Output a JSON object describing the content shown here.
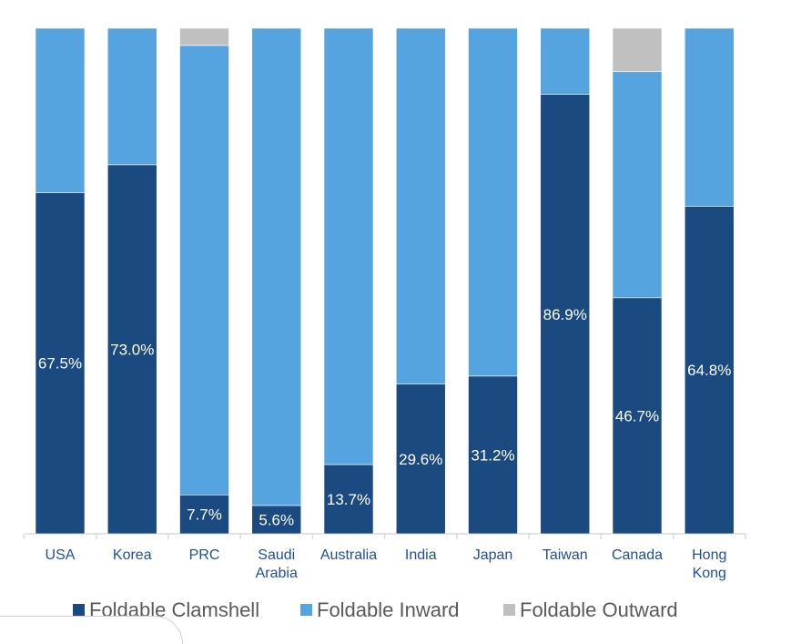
{
  "chart_data": {
    "type": "stacked-bar-100",
    "categories": [
      "USA",
      "Korea",
      "PRC",
      "Saudi Arabia",
      "Australia",
      "India",
      "Japan",
      "Taiwan",
      "Canada",
      "Hong Kong"
    ],
    "category_lines": [
      [
        "USA"
      ],
      [
        "Korea"
      ],
      [
        "PRC"
      ],
      [
        "Saudi",
        "Arabia"
      ],
      [
        "Australia"
      ],
      [
        "India"
      ],
      [
        "Japan"
      ],
      [
        "Taiwan"
      ],
      [
        "Canada"
      ],
      [
        "Hong",
        "Kong"
      ]
    ],
    "series": [
      {
        "name": "Foldable Clamshell",
        "color": "#1a4a80",
        "values": [
          67.5,
          73.0,
          7.7,
          5.6,
          13.7,
          29.6,
          31.2,
          86.9,
          46.7,
          64.8
        ]
      },
      {
        "name": "Foldable Inward",
        "color": "#55a4e0",
        "values": [
          32.5,
          27.0,
          88.9,
          94.4,
          86.3,
          70.4,
          68.8,
          13.1,
          44.7,
          35.2
        ]
      },
      {
        "name": "Foldable Outward",
        "color": "#c0c0c0",
        "values": [
          0,
          0,
          3.4,
          0,
          0,
          0,
          0,
          0,
          8.6,
          0
        ]
      }
    ],
    "data_labels": [
      "67.5%",
      "73.0%",
      "7.7%",
      "5.6%",
      "13.7%",
      "29.6%",
      "31.2%",
      "86.9%",
      "46.7%",
      "64.8%"
    ],
    "ylim": [
      0,
      100
    ],
    "legend_position": "bottom"
  }
}
